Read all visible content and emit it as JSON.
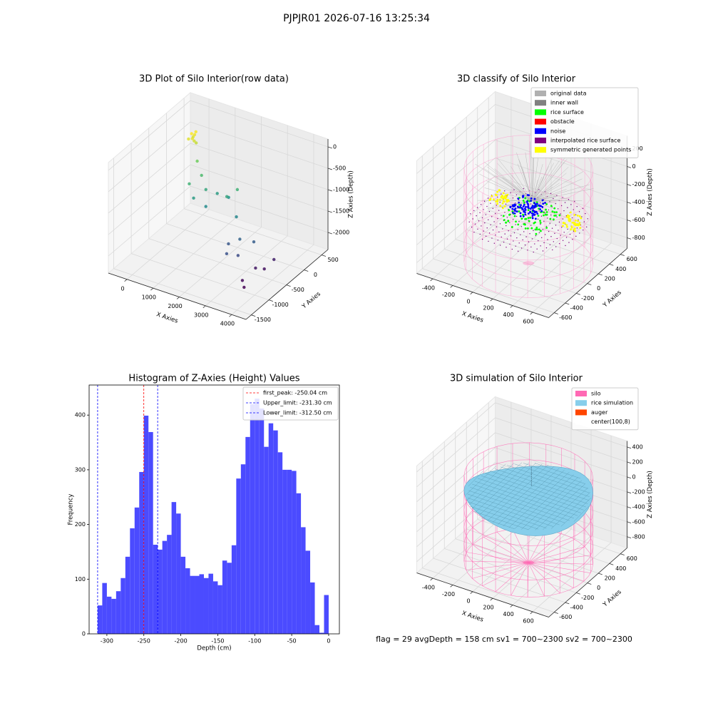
{
  "suptitle": "PJPJR01 2026-07-16 13:25:34",
  "footer": "flag = 29  avgDepth = 158 cm  sv1 = 700~2300  sv2 = 700~2300",
  "chart_data": [
    {
      "type": "scatter3d",
      "title": "3D Plot of Silo Interior(row data)",
      "xlabel": "X Axies",
      "ylabel": "Y Axies",
      "zlabel": "Z Axies (Depth)",
      "xlim": [
        -710,
        4546
      ],
      "ylim": [
        -1650,
        680
      ],
      "zlim": [
        -2400,
        183
      ],
      "xticks": [
        0,
        1000,
        2000,
        3000,
        4000
      ],
      "yticks": [
        -1500,
        -1000,
        -500,
        0,
        500
      ],
      "zticks": [
        0,
        -500,
        -1000,
        -1500,
        -2000
      ],
      "colormap": "viridis",
      "x": [
        250,
        300,
        200,
        350,
        280,
        320,
        400,
        230,
        600,
        900,
        1200,
        1500,
        1800,
        700,
        1000,
        2000,
        2200,
        1400,
        2500,
        2600,
        2900,
        3100,
        2800,
        3300,
        3500,
        3700,
        3400,
        3800,
        3600
      ],
      "y": [
        0,
        50,
        -50,
        0,
        100,
        -30,
        20,
        60,
        -100,
        -200,
        -300,
        -200,
        -100,
        -400,
        -500,
        -300,
        -150,
        -450,
        -400,
        -700,
        -600,
        -800,
        -900,
        -500,
        -600,
        -500,
        -900,
        -300,
        -1000
      ],
      "z": [
        -100,
        -150,
        -200,
        -250,
        -120,
        -180,
        -300,
        -220,
        -600,
        -800,
        -1000,
        -1100,
        -1200,
        -900,
        -1100,
        -1000,
        -900,
        -1250,
        -1300,
        -1700,
        -1600,
        -1800,
        -1750,
        -1650,
        -2150,
        -2200,
        -2250,
        -2100,
        -2300
      ]
    },
    {
      "type": "classify3d",
      "title": "3D classify of Silo Interior",
      "xlabel": "X Axies",
      "ylabel": "Y Axies",
      "zlabel": "Z Axies (Depth)",
      "xlim": [
        -560,
        760
      ],
      "ylim": [
        -700,
        720
      ],
      "zlim": [
        -920,
        344
      ],
      "xticks": [
        -400,
        -200,
        0,
        200,
        400,
        600
      ],
      "yticks": [
        -600,
        -400,
        -200,
        0,
        200,
        400,
        600
      ],
      "zticks": [
        -800,
        -600,
        -400,
        -200,
        0,
        200
      ],
      "legend": "upper right",
      "series": [
        {
          "name": "original data",
          "color": "#b0b0b0"
        },
        {
          "name": "inner wall",
          "color": "#808080"
        },
        {
          "name": "rice surface",
          "color": "#00ff00"
        },
        {
          "name": "obstacle",
          "color": "#ff0000"
        },
        {
          "name": "noise",
          "color": "#0000ff"
        },
        {
          "name": "interpolated rice surface",
          "color": "#800080"
        },
        {
          "name": "symmetric generated points",
          "color": "#ffff00"
        }
      ]
    },
    {
      "type": "histogram",
      "title": "Histogram of Z-Axies (Height) Values",
      "xlabel": "Depth (cm)",
      "ylabel": "Frequency",
      "color": "#4b4bff",
      "bins": [
        -312.5,
        -306.25,
        -300,
        -293.75,
        -287.5,
        -281.25,
        -275,
        -268.75,
        -262.5,
        -256.25,
        -250,
        -243.75,
        -237.5,
        -231.25,
        -225,
        -218.75,
        -212.5,
        -206.25,
        -200,
        -193.75,
        -187.5,
        -181.25,
        -175,
        -168.75,
        -162.5,
        -156.25,
        -150,
        -143.75,
        -137.5,
        -131.25,
        -125,
        -118.75,
        -112.5,
        -106.25,
        -100,
        -93.75,
        -87.5,
        -81.25,
        -75,
        -68.75,
        -62.5,
        -56.25,
        -50,
        -43.75,
        -37.5,
        -31.25,
        -25,
        -18.75,
        -12.5,
        -6.25,
        0
      ],
      "counts": [
        52,
        93,
        68,
        64,
        78,
        102,
        141,
        193,
        231,
        296,
        399,
        369,
        163,
        154,
        170,
        181,
        241,
        220,
        141,
        120,
        106,
        106,
        109,
        102,
        110,
        96,
        89,
        134,
        130,
        162,
        284,
        310,
        360,
        420,
        430,
        412,
        342,
        385,
        372,
        332,
        300,
        300,
        298,
        257,
        195,
        152,
        94,
        16,
        2,
        71
      ],
      "xlim": [
        -324,
        14.5
      ],
      "ylim": [
        0,
        455
      ],
      "xticks": [
        -300,
        -250,
        -200,
        -150,
        -100,
        -50,
        0
      ],
      "yticks": [
        0,
        100,
        200,
        300,
        400
      ],
      "legend": "upper right",
      "vlines": [
        {
          "label": "first_peak: -250.04 cm",
          "value": -250.04,
          "color": "#ff0000"
        },
        {
          "label": "Upper_limit: -231.30 cm",
          "value": -231.3,
          "color": "#0000ff"
        },
        {
          "label": "Lower_limit: -312.50 cm",
          "value": -312.5,
          "color": "#0000ff"
        }
      ]
    },
    {
      "type": "simulation3d",
      "title": "3D simulation of Silo Interior",
      "xlabel": "X Axies",
      "ylabel": "Y Axies",
      "zlabel": "Z Axies (Depth)",
      "xlim": [
        -560,
        760
      ],
      "ylim": [
        -700,
        720
      ],
      "zlim": [
        -950,
        480
      ],
      "xticks": [
        -400,
        -200,
        0,
        200,
        400,
        600
      ],
      "yticks": [
        -600,
        -400,
        -200,
        0,
        200,
        400,
        600
      ],
      "zticks": [
        -800,
        -600,
        -400,
        -200,
        0,
        200,
        400
      ],
      "legend": "upper right",
      "series": [
        {
          "name": "silo",
          "color": "#ff69b4"
        },
        {
          "name": "rice simulation",
          "color": "#87ceeb"
        },
        {
          "name": "auger",
          "color": "#ff4500"
        },
        {
          "name": "center(100,8)",
          "color": "#ffffff"
        }
      ]
    }
  ]
}
